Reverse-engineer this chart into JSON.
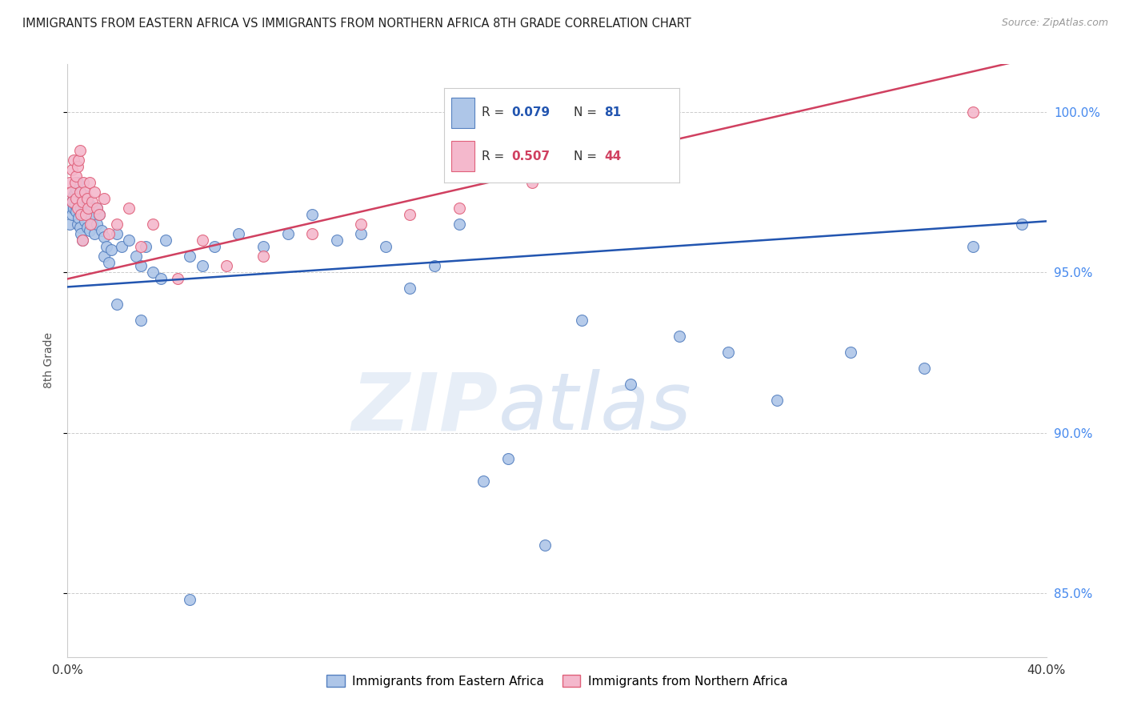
{
  "title": "IMMIGRANTS FROM EASTERN AFRICA VS IMMIGRANTS FROM NORTHERN AFRICA 8TH GRADE CORRELATION CHART",
  "source": "Source: ZipAtlas.com",
  "ylabel": "8th Grade",
  "xlim": [
    0.0,
    40.0
  ],
  "ylim": [
    83.0,
    101.5
  ],
  "y_ticks_right": [
    85.0,
    90.0,
    95.0,
    100.0
  ],
  "color_blue": "#aec6e8",
  "color_pink": "#f4b8cc",
  "color_blue_edge": "#5580c0",
  "color_pink_edge": "#e0607a",
  "color_blue_line": "#2255b0",
  "color_pink_line": "#d04060",
  "watermark_zip": "ZIP",
  "watermark_atlas": "atlas",
  "legend_label_blue": "Immigrants from Eastern Africa",
  "legend_label_pink": "Immigrants from Northern Africa",
  "blue_trend_x0": 0.0,
  "blue_trend_y0": 94.55,
  "blue_trend_x1": 40.0,
  "blue_trend_y1": 96.6,
  "pink_trend_x0": 0.0,
  "pink_trend_y0": 94.8,
  "pink_trend_x1": 40.0,
  "pink_trend_y1": 101.8,
  "blue_x": [
    0.1,
    0.15,
    0.2,
    0.2,
    0.25,
    0.25,
    0.3,
    0.3,
    0.35,
    0.35,
    0.4,
    0.4,
    0.4,
    0.45,
    0.45,
    0.5,
    0.5,
    0.55,
    0.55,
    0.6,
    0.6,
    0.65,
    0.65,
    0.7,
    0.7,
    0.75,
    0.8,
    0.8,
    0.85,
    0.9,
    0.9,
    0.95,
    1.0,
    1.0,
    1.1,
    1.1,
    1.2,
    1.2,
    1.3,
    1.4,
    1.5,
    1.5,
    1.6,
    1.7,
    1.8,
    2.0,
    2.2,
    2.5,
    2.8,
    3.0,
    3.2,
    3.5,
    3.8,
    4.0,
    5.0,
    5.5,
    6.0,
    7.0,
    8.0,
    9.0,
    10.0,
    11.0,
    12.0,
    13.0,
    14.0,
    15.0,
    16.0,
    17.0,
    18.0,
    19.5,
    21.0,
    23.0,
    25.0,
    27.0,
    29.0,
    32.0,
    35.0,
    37.0,
    39.0,
    2.0,
    3.0,
    5.0
  ],
  "blue_y": [
    96.5,
    97.0,
    97.2,
    96.8,
    97.4,
    97.0,
    97.5,
    97.1,
    96.9,
    97.6,
    97.3,
    96.5,
    97.8,
    96.7,
    97.2,
    96.4,
    97.5,
    97.0,
    96.2,
    97.3,
    96.0,
    97.1,
    96.8,
    97.4,
    96.6,
    97.0,
    97.2,
    96.4,
    96.9,
    97.1,
    96.3,
    96.8,
    97.0,
    96.5,
    96.2,
    96.8,
    96.5,
    97.0,
    96.8,
    96.3,
    96.1,
    95.5,
    95.8,
    95.3,
    95.7,
    96.2,
    95.8,
    96.0,
    95.5,
    95.2,
    95.8,
    95.0,
    94.8,
    96.0,
    95.5,
    95.2,
    95.8,
    96.2,
    95.8,
    96.2,
    96.8,
    96.0,
    96.2,
    95.8,
    94.5,
    95.2,
    96.5,
    88.5,
    89.2,
    86.5,
    93.5,
    91.5,
    93.0,
    92.5,
    91.0,
    92.5,
    92.0,
    95.8,
    96.5,
    94.0,
    93.5,
    84.8
  ],
  "pink_x": [
    0.1,
    0.15,
    0.2,
    0.2,
    0.25,
    0.3,
    0.35,
    0.35,
    0.4,
    0.4,
    0.45,
    0.5,
    0.5,
    0.55,
    0.6,
    0.6,
    0.65,
    0.7,
    0.75,
    0.8,
    0.85,
    0.9,
    0.95,
    1.0,
    1.1,
    1.2,
    1.3,
    1.5,
    1.7,
    2.0,
    2.5,
    3.0,
    3.5,
    4.5,
    5.5,
    6.5,
    8.0,
    10.0,
    12.0,
    14.0,
    16.0,
    19.0,
    22.0,
    37.0
  ],
  "pink_y": [
    97.8,
    97.5,
    98.2,
    97.2,
    98.5,
    97.8,
    98.0,
    97.3,
    98.3,
    97.0,
    98.5,
    97.5,
    98.8,
    96.8,
    97.2,
    96.0,
    97.8,
    97.5,
    96.8,
    97.3,
    97.0,
    97.8,
    96.5,
    97.2,
    97.5,
    97.0,
    96.8,
    97.3,
    96.2,
    96.5,
    97.0,
    95.8,
    96.5,
    94.8,
    96.0,
    95.2,
    95.5,
    96.2,
    96.5,
    96.8,
    97.0,
    97.8,
    98.2,
    100.0
  ]
}
